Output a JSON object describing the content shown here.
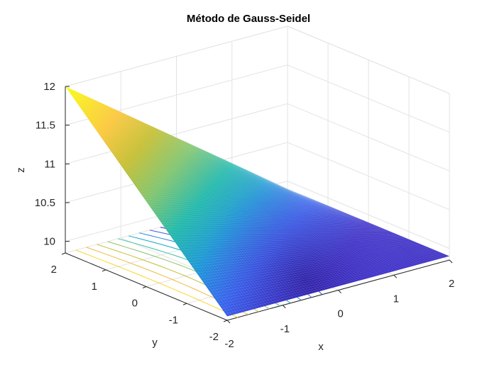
{
  "chart_data": {
    "type": "surface",
    "title": "Método de Gauss-Seidel",
    "xlabel": "x",
    "ylabel": "y",
    "zlabel": "z",
    "xlim": [
      -2,
      2
    ],
    "ylim": [
      -2,
      2
    ],
    "zlim": [
      9.85,
      12
    ],
    "xticks": [
      "-2",
      "-1",
      "0",
      "1",
      "2"
    ],
    "yticks": [
      "-2",
      "-1",
      "0",
      "1",
      "2"
    ],
    "zticks": [
      "10",
      "10.5",
      "11",
      "11.5",
      "12"
    ],
    "grid": true,
    "colormap": "parula",
    "contour_on_floor": true,
    "surface_corners": [
      {
        "x": -2,
        "y": 2,
        "z": 12
      },
      {
        "x": 2,
        "y": 2,
        "z": 9.9
      },
      {
        "x": 2,
        "y": -2,
        "z": 9.9
      },
      {
        "x": -2,
        "y": -2,
        "z": 9.9
      }
    ]
  }
}
